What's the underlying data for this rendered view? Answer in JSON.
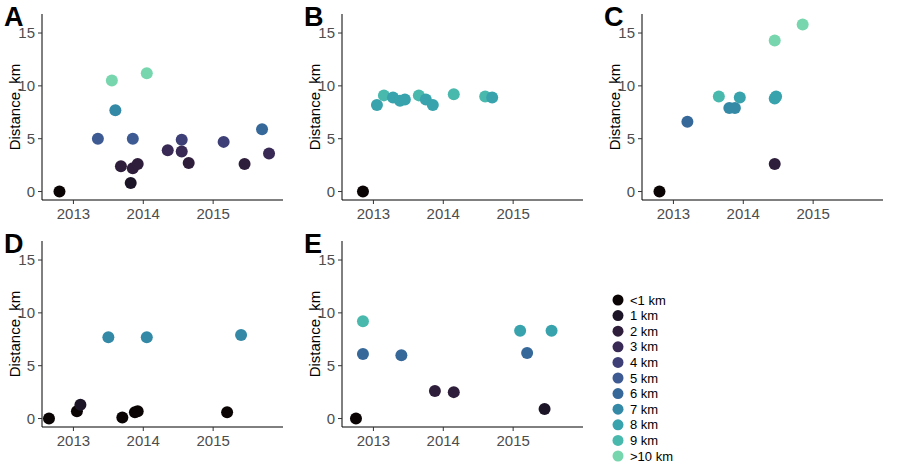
{
  "chart_data": [
    {
      "type": "scatter",
      "title": "A",
      "ylabel": "Distance, km",
      "marker": "circle",
      "x": [
        2012.8,
        2013.35,
        2013.55,
        2013.6,
        2013.68,
        2013.82,
        2013.85,
        2013.85,
        2013.92,
        2014.05,
        2014.35,
        2014.55,
        2014.55,
        2014.65,
        2015.15,
        2015.45,
        2015.7,
        2015.8
      ],
      "values": [
        0,
        5.0,
        10.5,
        7.7,
        2.4,
        0.8,
        2.2,
        5.0,
        2.6,
        11.2,
        3.9,
        3.8,
        4.9,
        2.7,
        4.7,
        2.6,
        5.9,
        3.6
      ],
      "colors": [
        "#0b0405",
        "#3e5a93",
        "#78d6ae",
        "#348aa6",
        "#2e1e3b",
        "#1c1427",
        "#2e1e3b",
        "#3e5a93",
        "#2e1e3b",
        "#78d6ae",
        "#382a54",
        "#382a54",
        "#3d3f76",
        "#2e1e3b",
        "#3d3f76",
        "#2e1e3b",
        "#36689a",
        "#382a54"
      ],
      "xlim": [
        2012.55,
        2016.0
      ],
      "ylim": [
        -0.8,
        16.8
      ],
      "xticks": [
        2013,
        2014,
        2015
      ],
      "yticks": [
        0,
        5,
        10,
        15
      ],
      "grid": false
    },
    {
      "type": "scatter",
      "title": "B",
      "ylabel": "Distance, km",
      "marker": "circle",
      "x": [
        2012.85,
        2013.05,
        2013.15,
        2013.28,
        2013.38,
        2013.45,
        2013.65,
        2013.75,
        2013.85,
        2014.15,
        2014.6,
        2014.7
      ],
      "values": [
        0,
        8.2,
        9.1,
        8.9,
        8.6,
        8.7,
        9.1,
        8.7,
        8.2,
        9.2,
        9.0,
        8.9
      ],
      "colors": [
        "#0b0405",
        "#38a3ac",
        "#49b9ad",
        "#38a3ac",
        "#38a3ac",
        "#38a3ac",
        "#49b9ad",
        "#38a3ac",
        "#38a3ac",
        "#49b9ad",
        "#49b9ad",
        "#38a3ac"
      ],
      "xlim": [
        2012.55,
        2016.0
      ],
      "ylim": [
        -0.8,
        16.8
      ],
      "xticks": [
        2013,
        2014,
        2015
      ],
      "yticks": [
        0,
        5,
        10,
        15
      ],
      "grid": false
    },
    {
      "type": "scatter",
      "title": "C",
      "ylabel": "Distance, km",
      "marker": "circle",
      "x": [
        2012.8,
        2013.2,
        2013.65,
        2013.8,
        2013.88,
        2013.95,
        2014.45,
        2014.45,
        2014.47,
        2014.45,
        2014.85
      ],
      "values": [
        0,
        6.6,
        9.0,
        7.9,
        7.9,
        8.9,
        2.6,
        8.8,
        9.0,
        14.3,
        15.8
      ],
      "colors": [
        "#0b0405",
        "#36689a",
        "#49b9ad",
        "#348aa6",
        "#348aa6",
        "#38a3ac",
        "#2e1e3b",
        "#38a3ac",
        "#38a3ac",
        "#78d6ae",
        "#78d6ae"
      ],
      "xlim": [
        2012.55,
        2016.0
      ],
      "ylim": [
        -0.8,
        16.8
      ],
      "xticks": [
        2013,
        2014,
        2015
      ],
      "yticks": [
        0,
        5,
        10,
        15
      ],
      "grid": false
    },
    {
      "type": "scatter",
      "title": "D",
      "ylabel": "Distance, km",
      "marker": "circle",
      "x": [
        2012.65,
        2013.05,
        2013.1,
        2013.5,
        2013.7,
        2013.88,
        2013.92,
        2014.05,
        2015.2,
        2015.4
      ],
      "values": [
        0,
        0.7,
        1.3,
        7.7,
        0.1,
        0.6,
        0.7,
        7.7,
        0.6,
        7.9
      ],
      "colors": [
        "#0b0405",
        "#0b0405",
        "#1c1427",
        "#348aa6",
        "#0b0405",
        "#0b0405",
        "#0b0405",
        "#348aa6",
        "#0b0405",
        "#348aa6"
      ],
      "xlim": [
        2012.55,
        2016.0
      ],
      "ylim": [
        -0.8,
        16.8
      ],
      "xticks": [
        2013,
        2014,
        2015
      ],
      "yticks": [
        0,
        5,
        10,
        15
      ],
      "grid": false
    },
    {
      "type": "scatter",
      "title": "E",
      "ylabel": "Distance, km",
      "marker": "circle",
      "x": [
        2012.75,
        2012.85,
        2012.85,
        2013.4,
        2013.88,
        2014.15,
        2015.1,
        2015.2,
        2015.45,
        2015.55
      ],
      "values": [
        0,
        9.2,
        6.1,
        6.0,
        2.6,
        2.5,
        8.3,
        6.2,
        0.9,
        8.3
      ],
      "colors": [
        "#0b0405",
        "#49b9ad",
        "#36689a",
        "#36689a",
        "#2e1e3b",
        "#2e1e3b",
        "#38a3ac",
        "#36689a",
        "#1c1427",
        "#38a3ac"
      ],
      "xlim": [
        2012.55,
        2016.0
      ],
      "ylim": [
        -0.8,
        16.8
      ],
      "xticks": [
        2013,
        2014,
        2015
      ],
      "yticks": [
        0,
        5,
        10,
        15
      ],
      "grid": false
    }
  ],
  "color_key": {
    "labels": [
      "<1 km",
      "1 km",
      "2 km",
      "3 km",
      "4 km",
      "5 km",
      "6 km",
      "7 km",
      "8 km",
      "9 km",
      ">10 km"
    ],
    "colors": [
      "#0b0405",
      "#1c1427",
      "#2e1e3b",
      "#382a54",
      "#3d3f76",
      "#3e5a93",
      "#36689a",
      "#348aa6",
      "#38a3ac",
      "#49b9ad",
      "#78d6ae"
    ]
  }
}
